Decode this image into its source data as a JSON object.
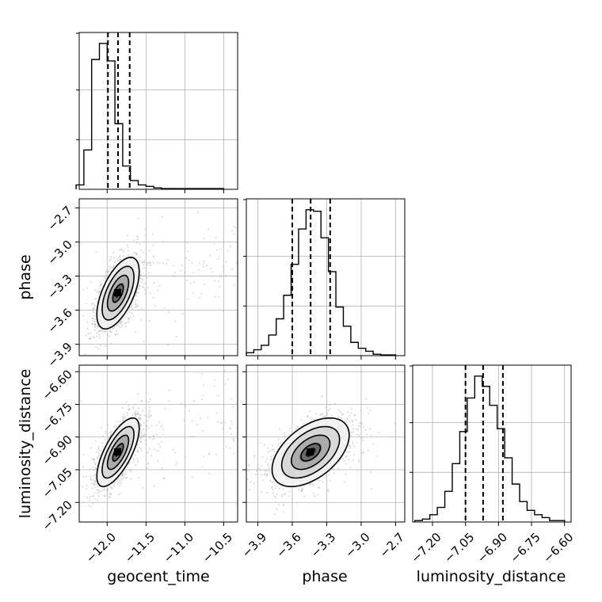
{
  "chart_data": {
    "type": "corner",
    "parameters": [
      {
        "key": "geocent_time",
        "label": "geocent_time",
        "range": [
          -12.36,
          -10.32
        ],
        "ticks": [
          -12.0,
          -11.5,
          -11.0,
          -10.5
        ],
        "tick_labels": [
          "−12.0",
          "−11.5",
          "−11.0",
          "−10.5"
        ],
        "quantiles": [
          -11.99,
          -11.86,
          -11.71
        ],
        "hist_x_range": [
          -12.4,
          -10.5
        ],
        "hist_counts": [
          0.3,
          2.7,
          8.9,
          10.0,
          8.8,
          4.5,
          1.6,
          0.6,
          0.3,
          0.2,
          0.1,
          0.05,
          0.05,
          0.05,
          0.05,
          0.05,
          0.05,
          0.05,
          0.05
        ]
      },
      {
        "key": "phase",
        "label": "phase",
        "range": [
          -4.0,
          -2.62
        ],
        "ticks": [
          -3.9,
          -3.6,
          -3.3,
          -3.0,
          -2.7
        ],
        "tick_labels": [
          "−3.9",
          "−3.6",
          "−3.3",
          "−3.0",
          "−2.7"
        ],
        "quantiles": [
          -3.6,
          -3.44,
          -3.27
        ],
        "hist_x_range": [
          -4.0,
          -2.7
        ],
        "hist_counts": [
          0.2,
          0.4,
          0.7,
          1.4,
          2.5,
          4.1,
          6.2,
          8.6,
          9.9,
          9.8,
          8.0,
          5.7,
          3.3,
          2.0,
          0.9,
          0.5,
          0.3,
          0.1,
          0.05,
          0.05
        ]
      },
      {
        "key": "luminosity_distance",
        "label": "luminosity_distance",
        "range": [
          -7.29,
          -6.57
        ],
        "ticks": [
          -7.2,
          -7.05,
          -6.9,
          -6.75,
          -6.6
        ],
        "tick_labels": [
          "−7.20",
          "−7.05",
          "−6.90",
          "−6.75",
          "−6.60"
        ],
        "quantiles": [
          -7.05,
          -6.97,
          -6.88
        ],
        "hist_x_range": [
          -7.28,
          -6.6
        ],
        "hist_counts": [
          0.1,
          0.2,
          0.5,
          1.0,
          2.1,
          4.0,
          6.2,
          8.5,
          10.0,
          9.3,
          8.0,
          6.4,
          4.4,
          2.6,
          1.4,
          0.8,
          0.5,
          0.3,
          0.1,
          0.1
        ]
      }
    ],
    "posteriors_2d": [
      {
        "x": "geocent_time",
        "y": "phase",
        "mean": [
          -11.86,
          -3.45
        ],
        "sd": [
          0.13,
          0.15
        ],
        "corr": 0.6,
        "contour_levels_sigma": [
          0.5,
          1.0,
          1.5,
          2.0
        ]
      },
      {
        "x": "geocent_time",
        "y": "luminosity_distance",
        "mean": [
          -11.86,
          -6.97
        ],
        "sd": [
          0.13,
          0.075
        ],
        "corr": 0.7,
        "contour_levels_sigma": [
          0.5,
          1.0,
          1.5,
          2.0
        ]
      },
      {
        "x": "phase",
        "y": "luminosity_distance",
        "mean": [
          -3.44,
          -6.97
        ],
        "sd": [
          0.16,
          0.075
        ],
        "corr": 0.5,
        "contour_levels_sigma": [
          0.5,
          1.0,
          1.5,
          2.0
        ]
      }
    ],
    "grid": true,
    "colors": {
      "points": "#9e9e9e",
      "contours": "#000000",
      "dense_core": "#000000"
    }
  }
}
